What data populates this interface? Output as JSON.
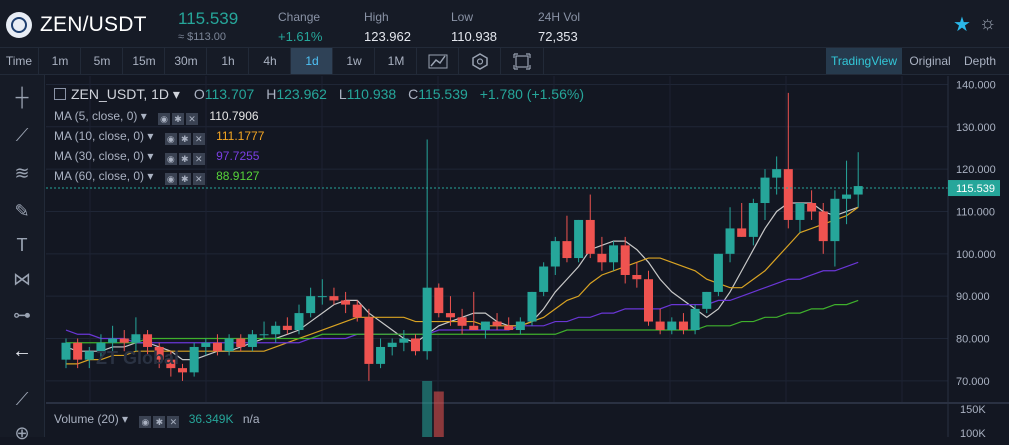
{
  "header": {
    "pair": "ZEN/USDT",
    "price": "115.539",
    "price_usd": "≈ $113.00",
    "stats": [
      {
        "label": "Change",
        "value": "+1.61%"
      },
      {
        "label": "High",
        "value": "123.962"
      },
      {
        "label": "Low",
        "value": "110.938"
      },
      {
        "label": "24H Vol",
        "value": "72,353"
      }
    ]
  },
  "toolbar": {
    "intervals": [
      "Time",
      "1m",
      "5m",
      "15m",
      "30m",
      "1h",
      "4h",
      "1d",
      "1w",
      "1M"
    ],
    "active_interval": "1d",
    "views": [
      "TradingView",
      "Original",
      "Depth"
    ],
    "active_view": "TradingView"
  },
  "legend": {
    "symbol": "ZEN_USDT, 1D",
    "open_label": "O",
    "open": "113.707",
    "high_label": "H",
    "high": "123.962",
    "low_label": "L",
    "low": "110.938",
    "close_label": "C",
    "close": "115.539",
    "change": "+1.780 (+1.56%)",
    "ma": [
      {
        "label": "MA (5, close, 0)",
        "value": "110.7906",
        "color": "#e6e6e6"
      },
      {
        "label": "MA (10, close, 0)",
        "value": "111.1777",
        "color": "#f5a623"
      },
      {
        "label": "MA (30, close, 0)",
        "value": "97.7255",
        "color": "#7b3fe4"
      },
      {
        "label": "MA (60, close, 0)",
        "value": "88.9127",
        "color": "#57d43a"
      }
    ],
    "volume_label": "Volume (20)",
    "volume_value": "36.349K",
    "volume_extra": "n/a"
  },
  "watermark": "ZT Global",
  "colors": {
    "up": "#26a69a",
    "down": "#ef5350",
    "background": "#131722"
  },
  "chart_data": {
    "type": "candlestick",
    "ylim": [
      65,
      142
    ],
    "yticks": [
      70,
      80,
      90,
      100,
      110,
      120,
      130,
      140
    ],
    "ytick_labels": [
      "70.000",
      "80.000",
      "90.000",
      "100.000",
      "110.000",
      "120.000",
      "130.000",
      "140.000"
    ],
    "last_price": 115.539,
    "last_price_label": "115.539",
    "volume_axis_labels": [
      "150K",
      "100K"
    ],
    "candles": [
      {
        "o": 75,
        "h": 80,
        "l": 73,
        "c": 79
      },
      {
        "o": 79,
        "h": 80,
        "l": 73,
        "c": 75
      },
      {
        "o": 75,
        "h": 78,
        "l": 73,
        "c": 77
      },
      {
        "o": 77,
        "h": 81,
        "l": 75,
        "c": 79
      },
      {
        "o": 79,
        "h": 83,
        "l": 77,
        "c": 80
      },
      {
        "o": 80,
        "h": 82,
        "l": 77,
        "c": 79
      },
      {
        "o": 79,
        "h": 85,
        "l": 77,
        "c": 81
      },
      {
        "o": 81,
        "h": 82,
        "l": 76,
        "c": 78
      },
      {
        "o": 78,
        "h": 79,
        "l": 73,
        "c": 75
      },
      {
        "o": 75,
        "h": 77,
        "l": 71,
        "c": 73
      },
      {
        "o": 73,
        "h": 74,
        "l": 70,
        "c": 72
      },
      {
        "o": 72,
        "h": 79,
        "l": 71,
        "c": 78
      },
      {
        "o": 78,
        "h": 80,
        "l": 76,
        "c": 79
      },
      {
        "o": 79,
        "h": 81,
        "l": 76,
        "c": 77
      },
      {
        "o": 77,
        "h": 81,
        "l": 76,
        "c": 80
      },
      {
        "o": 80,
        "h": 81,
        "l": 77,
        "c": 78
      },
      {
        "o": 78,
        "h": 82,
        "l": 77,
        "c": 81
      },
      {
        "o": 81,
        "h": 84,
        "l": 80,
        "c": 81
      },
      {
        "o": 81,
        "h": 84,
        "l": 79,
        "c": 83
      },
      {
        "o": 83,
        "h": 85,
        "l": 81,
        "c": 82
      },
      {
        "o": 82,
        "h": 88,
        "l": 81,
        "c": 86
      },
      {
        "o": 86,
        "h": 92,
        "l": 85,
        "c": 90
      },
      {
        "o": 90,
        "h": 94,
        "l": 88,
        "c": 90
      },
      {
        "o": 90,
        "h": 92,
        "l": 88,
        "c": 89
      },
      {
        "o": 89,
        "h": 91,
        "l": 86,
        "c": 88
      },
      {
        "o": 88,
        "h": 89,
        "l": 84,
        "c": 85
      },
      {
        "o": 85,
        "h": 87,
        "l": 70,
        "c": 74
      },
      {
        "o": 74,
        "h": 80,
        "l": 73,
        "c": 78
      },
      {
        "o": 78,
        "h": 80,
        "l": 76,
        "c": 79
      },
      {
        "o": 79,
        "h": 82,
        "l": 77,
        "c": 80
      },
      {
        "o": 80,
        "h": 81,
        "l": 76,
        "c": 77
      },
      {
        "o": 77,
        "h": 127,
        "l": 75,
        "c": 92
      },
      {
        "o": 92,
        "h": 93,
        "l": 85,
        "c": 86
      },
      {
        "o": 86,
        "h": 90,
        "l": 83,
        "c": 85
      },
      {
        "o": 85,
        "h": 87,
        "l": 81,
        "c": 83
      },
      {
        "o": 83,
        "h": 91,
        "l": 82,
        "c": 82
      },
      {
        "o": 82,
        "h": 84,
        "l": 80,
        "c": 84
      },
      {
        "o": 84,
        "h": 86,
        "l": 82,
        "c": 83
      },
      {
        "o": 83,
        "h": 85,
        "l": 82,
        "c": 82
      },
      {
        "o": 82,
        "h": 85,
        "l": 81,
        "c": 84
      },
      {
        "o": 84,
        "h": 91,
        "l": 83,
        "c": 91
      },
      {
        "o": 91,
        "h": 98,
        "l": 90,
        "c": 97
      },
      {
        "o": 97,
        "h": 104,
        "l": 95,
        "c": 103
      },
      {
        "o": 103,
        "h": 109,
        "l": 98,
        "c": 99
      },
      {
        "o": 99,
        "h": 108,
        "l": 98,
        "c": 108
      },
      {
        "o": 108,
        "h": 114,
        "l": 99,
        "c": 100
      },
      {
        "o": 100,
        "h": 104,
        "l": 96,
        "c": 98
      },
      {
        "o": 98,
        "h": 103,
        "l": 96,
        "c": 102
      },
      {
        "o": 102,
        "h": 104,
        "l": 93,
        "c": 95
      },
      {
        "o": 95,
        "h": 98,
        "l": 92,
        "c": 94
      },
      {
        "o": 94,
        "h": 96,
        "l": 83,
        "c": 84
      },
      {
        "o": 84,
        "h": 87,
        "l": 81,
        "c": 82
      },
      {
        "o": 82,
        "h": 85,
        "l": 81,
        "c": 84
      },
      {
        "o": 84,
        "h": 86,
        "l": 81,
        "c": 82
      },
      {
        "o": 82,
        "h": 88,
        "l": 81,
        "c": 87
      },
      {
        "o": 87,
        "h": 91,
        "l": 86,
        "c": 91
      },
      {
        "o": 91,
        "h": 100,
        "l": 90,
        "c": 100
      },
      {
        "o": 100,
        "h": 111,
        "l": 98,
        "c": 106
      },
      {
        "o": 106,
        "h": 112,
        "l": 104,
        "c": 104
      },
      {
        "o": 104,
        "h": 113,
        "l": 102,
        "c": 112
      },
      {
        "o": 112,
        "h": 120,
        "l": 108,
        "c": 118
      },
      {
        "o": 118,
        "h": 123,
        "l": 114,
        "c": 120
      },
      {
        "o": 120,
        "h": 138,
        "l": 106,
        "c": 108
      },
      {
        "o": 108,
        "h": 112,
        "l": 105,
        "c": 112
      },
      {
        "o": 112,
        "h": 115,
        "l": 108,
        "c": 110
      },
      {
        "o": 110,
        "h": 112,
        "l": 100,
        "c": 103
      },
      {
        "o": 103,
        "h": 115,
        "l": 97,
        "c": 113
      },
      {
        "o": 113,
        "h": 122,
        "l": 107,
        "c": 114
      },
      {
        "o": 114,
        "h": 124,
        "l": 111,
        "c": 116
      }
    ],
    "series": [
      {
        "name": "MA (5, close, 0)",
        "color": "#c8c8c8",
        "values": [
          78,
          77,
          77,
          77,
          78,
          78,
          79,
          79,
          78,
          77,
          75,
          75,
          76,
          77,
          77,
          78,
          79,
          80,
          80,
          81,
          82,
          84,
          86,
          88,
          89,
          89,
          86,
          84,
          82,
          80,
          79,
          81,
          83,
          84,
          85,
          86,
          86,
          84,
          83,
          83,
          84,
          87,
          91,
          94,
          97,
          101,
          102,
          103,
          103,
          101,
          98,
          94,
          91,
          89,
          87,
          85,
          87,
          91,
          96,
          101,
          106,
          110,
          112,
          112,
          112,
          110,
          109,
          110,
          111
        ]
      },
      {
        "name": "MA (10, close, 0)",
        "color": "#d9a323",
        "values": [
          74,
          74,
          75,
          75,
          76,
          76,
          77,
          77,
          77,
          77,
          77,
          77,
          77,
          77,
          77,
          77,
          77,
          77,
          78,
          79,
          80,
          81,
          82,
          83,
          84,
          85,
          85,
          85,
          85,
          85,
          84,
          84,
          84,
          84,
          84,
          84,
          83,
          83,
          83,
          83,
          84,
          85,
          87,
          89,
          90,
          93,
          95,
          96,
          97,
          98,
          99,
          99,
          98,
          97,
          96,
          94,
          93,
          92,
          92,
          94,
          96,
          99,
          102,
          105,
          106,
          107,
          108,
          109,
          111
        ]
      },
      {
        "name": "MA (30, close, 0)",
        "color": "#6a36d6",
        "values": [
          82,
          81,
          81,
          80,
          80,
          80,
          79,
          79,
          79,
          79,
          79,
          79,
          79,
          79,
          79,
          79,
          79,
          79,
          79,
          79,
          79,
          80,
          80,
          80,
          80,
          81,
          81,
          81,
          81,
          81,
          81,
          81,
          82,
          82,
          82,
          82,
          82,
          82,
          82,
          83,
          83,
          83,
          84,
          84,
          85,
          85,
          86,
          86,
          87,
          87,
          87,
          87,
          88,
          88,
          88,
          88,
          89,
          89,
          90,
          91,
          92,
          93,
          94,
          94,
          95,
          96,
          96,
          97,
          98
        ]
      },
      {
        "name": "MA (60, close, 0)",
        "color": "#3fb02c",
        "values": [
          79,
          79,
          79,
          79,
          79,
          79,
          79,
          80,
          80,
          80,
          80,
          80,
          80,
          80,
          80,
          80,
          80,
          80,
          80,
          80,
          80,
          80,
          81,
          81,
          81,
          81,
          81,
          81,
          81,
          81,
          81,
          81,
          81,
          81,
          81,
          81,
          81,
          81,
          81,
          81,
          81,
          81,
          81,
          82,
          82,
          82,
          82,
          82,
          82,
          82,
          82,
          82,
          82,
          82,
          82,
          83,
          83,
          83,
          84,
          84,
          85,
          85,
          86,
          86,
          87,
          87,
          88,
          88,
          89
        ]
      }
    ],
    "volume": [
      {
        "index": 31,
        "value": 160000
      },
      {
        "index": 32,
        "value": 130000
      }
    ]
  }
}
